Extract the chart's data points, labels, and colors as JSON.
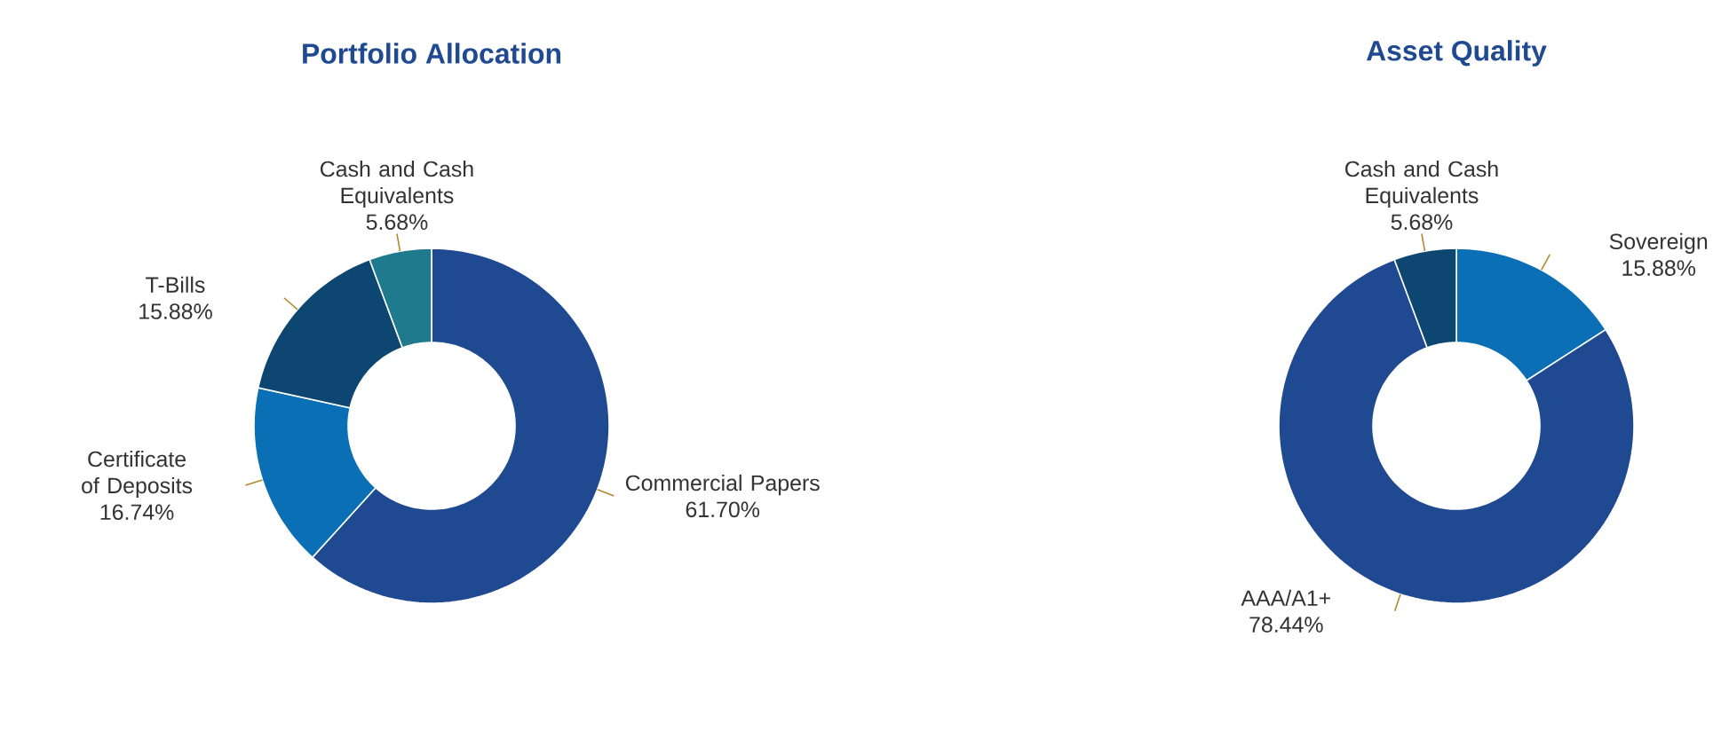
{
  "chart_data": [
    {
      "type": "donut",
      "title": "Portfolio Allocation",
      "categories": [
        "Commercial Papers",
        "Certificate of Deposits",
        "T-Bills",
        "Cash and Cash Equivalents"
      ],
      "values": [
        61.7,
        16.74,
        15.88,
        5.68
      ],
      "colors": [
        "#1f4a91",
        "#0a6fb5",
        "#0d4670",
        "#1e7a8c"
      ],
      "value_labels": [
        "61.70%",
        "16.74%",
        "15.88%",
        "5.68%"
      ]
    },
    {
      "type": "donut",
      "title": "Asset Quality",
      "categories": [
        "Sovereign",
        "AAA/A1+",
        "Cash and Cash Equivalents"
      ],
      "values": [
        15.88,
        78.44,
        5.68
      ],
      "colors": [
        "#0a6fb5",
        "#1f4a91",
        "#0d4670"
      ],
      "value_labels": [
        "15.88%",
        "78.44%",
        "5.68%"
      ]
    }
  ]
}
